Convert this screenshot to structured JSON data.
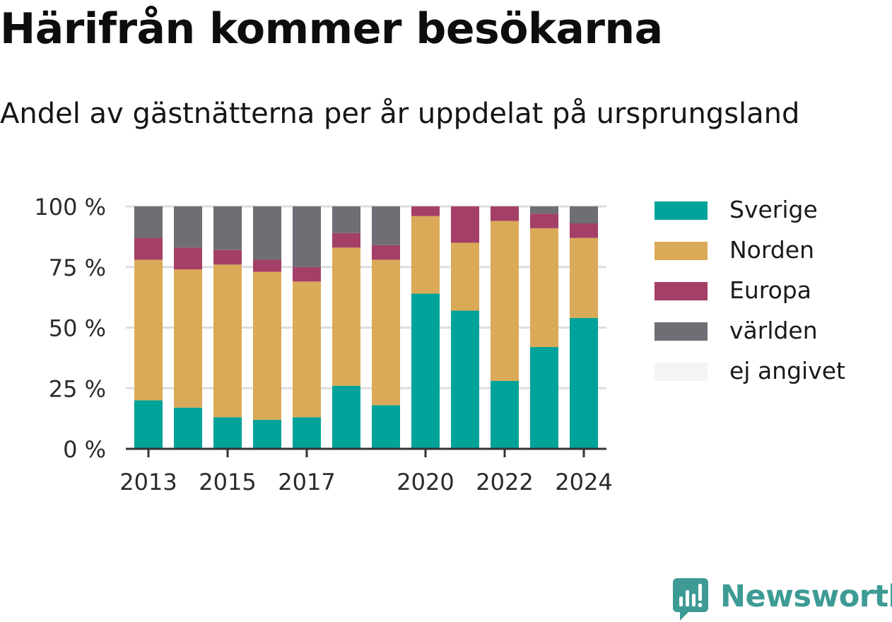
{
  "title": "Härifrån kommer besökarna",
  "subtitle": "Andel av gästnätterna per år uppdelat på ursprungsland",
  "legend": [
    {
      "label": "Sverige",
      "color": "#00a39a"
    },
    {
      "label": "Norden",
      "color": "#dbaa58"
    },
    {
      "label": "Europa",
      "color": "#a43f67"
    },
    {
      "label": "världen",
      "color": "#6e6e74"
    },
    {
      "label": "ej angivet",
      "color": "#f4f4f2"
    }
  ],
  "brand": {
    "name": "Newsworthy",
    "icon": "newsworthy-logo-icon"
  },
  "chart_data": {
    "type": "bar",
    "stacked": true,
    "years": [
      2013,
      2014,
      2015,
      2016,
      2017,
      2018,
      2019,
      2020,
      2021,
      2022,
      2023,
      2024
    ],
    "x_tick_labels": [
      "2013",
      "2015",
      "2017",
      "2020",
      "2022",
      "2024"
    ],
    "y_tick_labels": [
      "0 %",
      "25 %",
      "50 %",
      "75 %",
      "100 %"
    ],
    "ylim": [
      0,
      100
    ],
    "grid": true,
    "legend_position": "right",
    "series": [
      {
        "name": "Sverige",
        "color": "#00a39a",
        "values": [
          20,
          17,
          13,
          12,
          13,
          26,
          18,
          64,
          57,
          28,
          42,
          54
        ]
      },
      {
        "name": "Norden",
        "color": "#dbaa58",
        "values": [
          58,
          57,
          63,
          61,
          56,
          57,
          60,
          32,
          28,
          66,
          49,
          33
        ]
      },
      {
        "name": "Europa",
        "color": "#a43f67",
        "values": [
          9,
          9,
          6,
          5,
          6,
          6,
          6,
          4,
          15,
          6,
          6,
          6
        ]
      },
      {
        "name": "världen",
        "color": "#6e6e74",
        "values": [
          13,
          17,
          18,
          22,
          25,
          11,
          16,
          0,
          0,
          0,
          3,
          7
        ]
      },
      {
        "name": "ej angivet",
        "color": "#f4f4f2",
        "values": [
          0,
          0,
          0,
          0,
          0,
          0,
          0,
          0,
          0,
          0,
          0,
          0
        ]
      }
    ]
  }
}
